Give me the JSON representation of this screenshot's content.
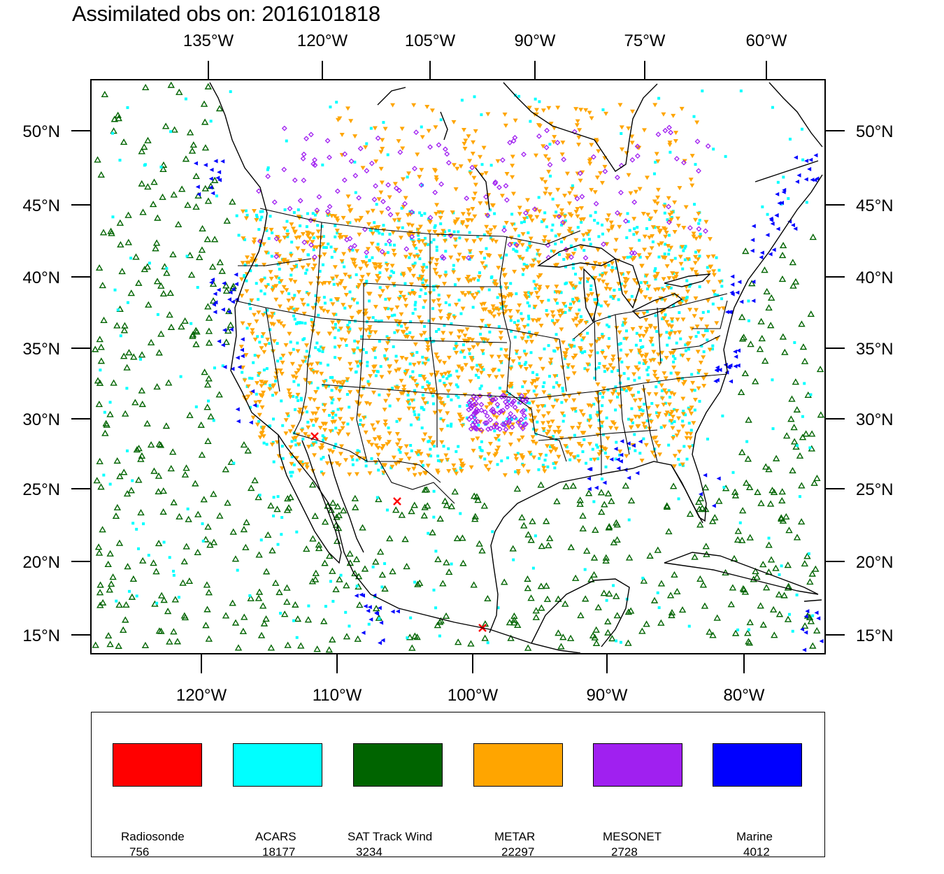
{
  "title": "Assimilated obs on: 2016101818",
  "top_lon_ticks": [
    "135°W",
    "120°W",
    "105°W",
    "90°W",
    "75°W",
    "60°W"
  ],
  "bottom_lon_ticks": [
    "120°W",
    "110°W",
    "100°W",
    "90°W",
    "80°W"
  ],
  "lat_ticks": [
    "50°N",
    "45°N",
    "40°N",
    "35°N",
    "30°N",
    "25°N",
    "20°N",
    "15°N"
  ],
  "legend": [
    {
      "name": "Radiosonde",
      "count": "756",
      "color": "#ff0000",
      "marker": "x"
    },
    {
      "name": "ACARS",
      "count": "18177",
      "color": "#00ffff",
      "marker": "square"
    },
    {
      "name": "SAT Track Wind",
      "count": "3234",
      "color": "#006400",
      "marker": "triangle-up"
    },
    {
      "name": "METAR",
      "count": "22297",
      "color": "#ffa500",
      "marker": "triangle-down"
    },
    {
      "name": "MESONET",
      "count": "2728",
      "color": "#a020f0",
      "marker": "diamond"
    },
    {
      "name": "Marine",
      "count": "4012",
      "color": "#0000ff",
      "marker": "triangle-left"
    }
  ]
}
